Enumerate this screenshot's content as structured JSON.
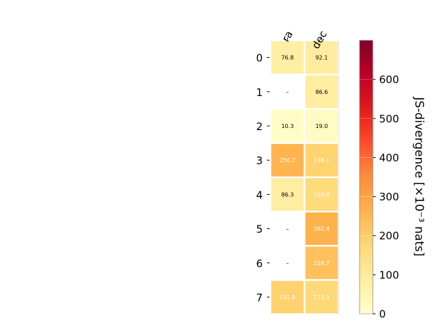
{
  "chart_data": {
    "type": "heatmap",
    "columns": [
      "ra",
      "dec"
    ],
    "rows": [
      "0",
      "1",
      "2",
      "3",
      "4",
      "5",
      "6",
      "7"
    ],
    "values": [
      [
        76.8,
        92.1
      ],
      [
        null,
        86.6
      ],
      [
        10.3,
        19.0
      ],
      [
        256.7,
        188.1
      ],
      [
        86.3,
        163.8
      ],
      [
        null,
        262.4
      ],
      [
        null,
        228.7
      ],
      [
        191.8,
        173.3
      ]
    ],
    "cell_labels": [
      [
        "76.8",
        "92.1"
      ],
      [
        "–",
        "86.6"
      ],
      [
        "10.3",
        "19.0"
      ],
      [
        "256.7",
        "188.1"
      ],
      [
        "86.3",
        "163.8"
      ],
      [
        "–",
        "262.4"
      ],
      [
        "–",
        "228.7"
      ],
      [
        "191.8",
        "173.3"
      ]
    ],
    "colorbar": {
      "label": "JS-divergence [×10⁻³ nats]",
      "range": [
        0,
        700
      ],
      "ticks": [
        "0",
        "100",
        "200",
        "300",
        "400",
        "500",
        "600"
      ],
      "tick_values": [
        0,
        100,
        200,
        300,
        400,
        500,
        600
      ],
      "colormap": "YlOrRd"
    },
    "missing_cell_color": "#ffffff",
    "dark_label_threshold": 150
  }
}
